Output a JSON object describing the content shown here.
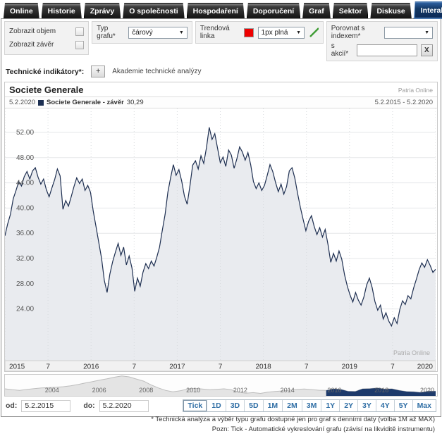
{
  "tabs": {
    "items": [
      "Online",
      "Historie",
      "Zprávy",
      "O společnosti",
      "Hospodaření",
      "Doporučení",
      "Graf",
      "Sektor",
      "Diskuse",
      "Interaktivní graf"
    ],
    "active": "Interaktivní graf"
  },
  "controls": {
    "show_volume_label": "Zobrazit objem",
    "show_close_label": "Zobrazit závěr",
    "chart_type_label": "Typ grafu*",
    "chart_type_value": "čárový",
    "trend_label": "Trendová linka",
    "trend_color": "#ee0000",
    "trend_style_value": "1px plná",
    "compare_index_label": "Porovnat s indexem*",
    "compare_stock_label": "s akcií*",
    "clear_button": "X",
    "indicators_label": "Technické indikátory*:",
    "add_button": "+",
    "academy_link": "Akademie technické analýzy"
  },
  "chart_header": {
    "title": "Societe Generale",
    "brand": "Patria Online",
    "legend_date": "5.2.2020",
    "legend_name": "Societe Generale - závěr",
    "legend_value": "30,29",
    "date_range": "5.2.2015 - 5.2.2020",
    "watermark": "Patria Online"
  },
  "bottom": {
    "od_label": "od:",
    "od_value": "5.2.2015",
    "do_label": "do:",
    "do_value": "5.2.2020",
    "ranges": [
      "Tick",
      "1D",
      "3D",
      "5D",
      "1M",
      "2M",
      "3M",
      "1Y",
      "2Y",
      "3Y",
      "4Y",
      "5Y",
      "Max"
    ],
    "active_range": "Tick"
  },
  "footnotes": [
    "* Technická analýza a výběr typu grafu dostupné jen pro graf s denními daty (volba 1M až MAX)",
    "Pozn: Tick - Automatické vykreslování grafu (závisí na likviditě instrumentu)"
  ],
  "colors": {
    "line": "#1e2f51",
    "fill": "#e9ebef",
    "nav_line": "#bdbdbd",
    "nav_fill": "#e4e4e4",
    "nav_highlight": "#1d3a6b",
    "grid_h": "#e5e7e9",
    "grid_v": "#d8dbde",
    "axis_strip": "#f1f1f1"
  },
  "chart_data": [
    {
      "type": "area",
      "title": "Societe Generale",
      "series_name": "Societe Generale - závěr",
      "last_value": 30.29,
      "x_tick_labels": [
        "2015",
        "7",
        "2016",
        "7",
        "2017",
        "7",
        "2018",
        "7",
        "2019",
        "7",
        "2020"
      ],
      "y_ticks": [
        24,
        28,
        32,
        36,
        40,
        44,
        48,
        52
      ],
      "ylim": [
        15.8,
        55.8
      ],
      "xlabel": "",
      "ylabel": "",
      "values": [
        35.6,
        37.5,
        39.0,
        41.5,
        42.8,
        44.2,
        43.5,
        45.0,
        45.8,
        44.6,
        45.9,
        46.4,
        44.9,
        43.8,
        44.6,
        42.9,
        41.8,
        43.2,
        44.5,
        46.2,
        45.1,
        39.8,
        41.2,
        40.3,
        41.8,
        43.4,
        44.8,
        43.9,
        44.6,
        42.8,
        43.6,
        42.5,
        39.5,
        37.0,
        34.5,
        32.0,
        28.5,
        26.6,
        29.5,
        31.5,
        33.0,
        34.4,
        32.5,
        33.8,
        31.0,
        32.4,
        30.5,
        26.8,
        28.9,
        27.6,
        29.8,
        31.2,
        30.4,
        31.6,
        30.8,
        32.2,
        33.8,
        36.5,
        39.0,
        42.5,
        44.8,
        46.9,
        45.2,
        46.1,
        44.3,
        41.9,
        40.6,
        43.5,
        46.8,
        47.5,
        46.2,
        48.3,
        47.1,
        49.6,
        52.8,
        50.9,
        51.8,
        49.5,
        47.2,
        48.1,
        46.6,
        49.2,
        48.4,
        46.3,
        47.8,
        49.7,
        48.9,
        47.6,
        48.8,
        46.9,
        44.2,
        43.1,
        44.0,
        42.8,
        43.6,
        45.2,
        46.9,
        45.8,
        44.1,
        42.6,
        43.8,
        42.2,
        43.4,
        45.9,
        46.4,
        44.7,
        42.3,
        40.1,
        38.2,
        36.4,
        37.9,
        38.8,
        37.1,
        35.8,
        36.9,
        35.4,
        36.6,
        34.2,
        31.4,
        32.8,
        31.6,
        33.2,
        31.9,
        29.4,
        27.6,
        26.2,
        25.1,
        26.6,
        25.4,
        24.6,
        25.9,
        27.8,
        28.9,
        27.4,
        25.2,
        23.8,
        24.6,
        22.4,
        23.4,
        22.1,
        21.3,
        22.6,
        21.7,
        23.9,
        25.3,
        24.7,
        26.1,
        25.6,
        27.3,
        28.7,
        30.2,
        31.3,
        30.6,
        31.8,
        30.9,
        29.8,
        30.29
      ]
    },
    {
      "type": "area",
      "title": "navigator 2002-2020",
      "x_domain": [
        2002,
        2020.3
      ],
      "x_tick_years": [
        2004,
        2006,
        2008,
        2010,
        2012,
        2014,
        2016,
        2018,
        2020
      ],
      "ylim": [
        0,
        138
      ],
      "highlight_from_index": 44,
      "values": [
        46,
        40,
        36,
        42,
        47,
        52,
        54,
        56,
        60,
        66,
        74,
        84,
        93,
        103,
        112,
        122,
        130,
        124,
        110,
        96,
        72,
        52,
        36,
        26,
        33,
        44,
        49,
        45,
        40,
        43,
        46,
        40,
        24,
        17,
        21,
        16,
        24,
        29,
        32,
        38,
        42,
        45,
        41,
        37,
        36,
        46,
        43,
        30,
        29,
        46,
        47,
        52,
        44,
        46,
        36,
        28,
        26,
        22,
        31,
        30.3
      ]
    }
  ]
}
